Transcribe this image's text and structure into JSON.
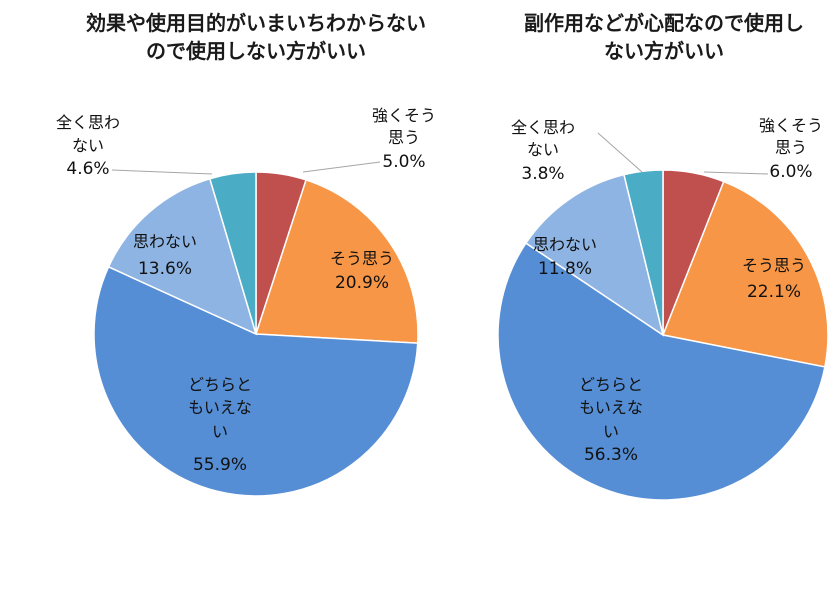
{
  "chart_data": [
    {
      "type": "pie",
      "title_lines": [
        "効果や使用目的がいまいちわからない",
        "ので使用しない方がいい"
      ],
      "slices": [
        {
          "label_lines": [
            "強くそう",
            "思う"
          ],
          "value": 5.0,
          "value_label": "5.0%",
          "color": "#C0504D"
        },
        {
          "label_lines": [
            "そう思う"
          ],
          "value": 20.9,
          "value_label": "20.9%",
          "color": "#F79646"
        },
        {
          "label_lines": [
            "どちらと",
            "もいえな",
            "い"
          ],
          "value": 55.9,
          "value_label": "55.9%",
          "color": "#558ED5"
        },
        {
          "label_lines": [
            "思わない"
          ],
          "value": 13.6,
          "value_label": "13.6%",
          "color": "#8EB4E3"
        },
        {
          "label_lines": [
            "全く思わ",
            "ない"
          ],
          "value": 4.6,
          "value_label": "4.6%",
          "color": "#4BACC6"
        }
      ]
    },
    {
      "type": "pie",
      "title_lines": [
        "副作用などが心配なので使用し",
        "ない方がいい"
      ],
      "slices": [
        {
          "label_lines": [
            "強くそう",
            "思う"
          ],
          "value": 6.0,
          "value_label": "6.0%",
          "color": "#C0504D"
        },
        {
          "label_lines": [
            "そう思う"
          ],
          "value": 22.1,
          "value_label": "22.1%",
          "color": "#F79646"
        },
        {
          "label_lines": [
            "どちらと",
            "もいえな",
            "い"
          ],
          "value": 56.3,
          "value_label": "56.3%",
          "color": "#558ED5"
        },
        {
          "label_lines": [
            "思わない"
          ],
          "value": 11.8,
          "value_label": "11.8%",
          "color": "#8EB4E3"
        },
        {
          "label_lines": [
            "全く思わ",
            "ない"
          ],
          "value": 3.8,
          "value_label": "3.8%",
          "color": "#4BACC6"
        }
      ]
    }
  ]
}
